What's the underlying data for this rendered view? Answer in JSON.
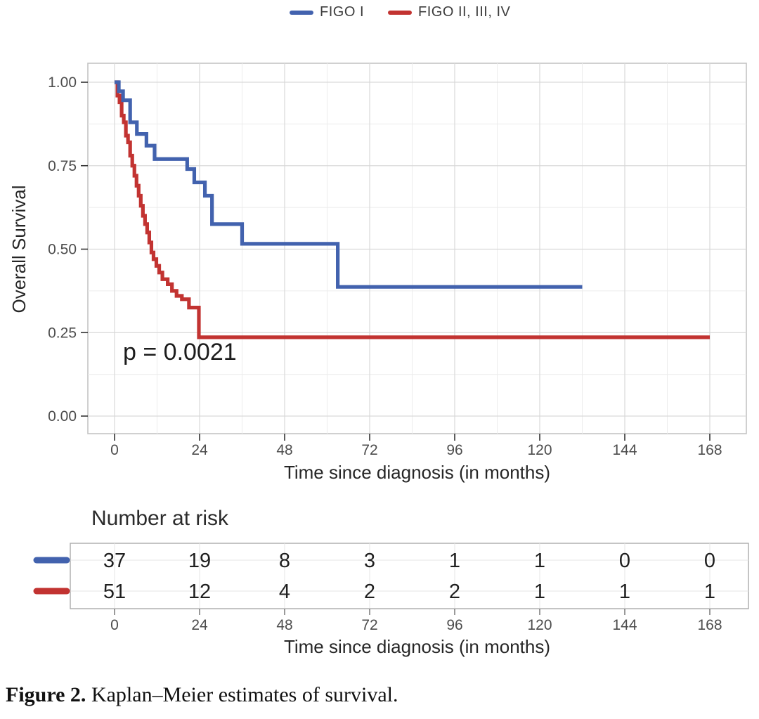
{
  "legend": {
    "items": [
      {
        "label": "FIGO I",
        "color": "#4262ae"
      },
      {
        "label": "FIGO II, III, IV",
        "color": "#c23331"
      }
    ]
  },
  "chart_data": {
    "type": "line",
    "subtype": "kaplan-meier-step",
    "title": "",
    "xlabel": "Time since diagnosis (in months)",
    "ylabel": "Overall Survival",
    "x_ticks": [
      0,
      24,
      48,
      72,
      96,
      120,
      144,
      168
    ],
    "x_minor_ticks": [
      12,
      36,
      60,
      84,
      108,
      132,
      156
    ],
    "y_ticks": [
      1.0,
      0.75,
      0.5,
      0.25,
      0.0
    ],
    "y_tick_labels": [
      "1.00",
      "0.75",
      "0.50",
      "0.25",
      "0.00"
    ],
    "y_minor_ticks": [
      0.875,
      0.625,
      0.375,
      0.125
    ],
    "xlim": [
      0,
      178
    ],
    "ylim": [
      0,
      1
    ],
    "grid": true,
    "legend_position": "top",
    "annotation": {
      "text": "p = 0.0021"
    },
    "series": [
      {
        "name": "FIGO I",
        "color": "#4262ae",
        "end_month": 132,
        "steps": [
          [
            0,
            1.0
          ],
          [
            1.2,
            0.973
          ],
          [
            2.4,
            0.946
          ],
          [
            4.4,
            0.88
          ],
          [
            6.3,
            0.845
          ],
          [
            9,
            0.81
          ],
          [
            11.3,
            0.77
          ],
          [
            20.5,
            0.74
          ],
          [
            22.5,
            0.7
          ],
          [
            25.5,
            0.66
          ],
          [
            27.5,
            0.575
          ],
          [
            36,
            0.516
          ],
          [
            63,
            0.387
          ]
        ]
      },
      {
        "name": "FIGO II, III, IV",
        "color": "#c23331",
        "end_month": 168,
        "steps": [
          [
            0,
            1.0
          ],
          [
            0.8,
            0.96
          ],
          [
            1.4,
            0.94
          ],
          [
            2,
            0.9
          ],
          [
            2.6,
            0.88
          ],
          [
            3.2,
            0.84
          ],
          [
            3.8,
            0.82
          ],
          [
            4.4,
            0.78
          ],
          [
            5,
            0.75
          ],
          [
            5.6,
            0.72
          ],
          [
            6.2,
            0.69
          ],
          [
            6.8,
            0.66
          ],
          [
            7.4,
            0.63
          ],
          [
            8,
            0.6
          ],
          [
            8.6,
            0.575
          ],
          [
            9.2,
            0.55
          ],
          [
            9.8,
            0.52
          ],
          [
            10.4,
            0.49
          ],
          [
            11,
            0.47
          ],
          [
            11.8,
            0.45
          ],
          [
            12.6,
            0.43
          ],
          [
            13.5,
            0.41
          ],
          [
            15,
            0.395
          ],
          [
            16.2,
            0.375
          ],
          [
            17.5,
            0.36
          ],
          [
            19,
            0.35
          ],
          [
            21,
            0.325
          ],
          [
            23.8,
            0.236
          ]
        ]
      }
    ]
  },
  "risk_table": {
    "heading": "Number at risk",
    "columns": [
      0,
      24,
      48,
      72,
      96,
      120,
      144,
      168
    ],
    "column_labels": [
      "0",
      "24",
      "48",
      "72",
      "96",
      "120",
      "144",
      "168"
    ],
    "xlabel": "Time since diagnosis (in months)",
    "rows": [
      {
        "name": "FIGO I",
        "color": "#4262ae",
        "values": [
          "37",
          "19",
          "8",
          "3",
          "1",
          "1",
          "0",
          "0"
        ]
      },
      {
        "name": "FIGO II, III, IV",
        "color": "#c23331",
        "values": [
          "51",
          "12",
          "4",
          "2",
          "2",
          "1",
          "1",
          "1"
        ]
      }
    ]
  },
  "caption": {
    "label": "Figure 2.",
    "text": " Kaplan–Meier estimates of survival."
  }
}
